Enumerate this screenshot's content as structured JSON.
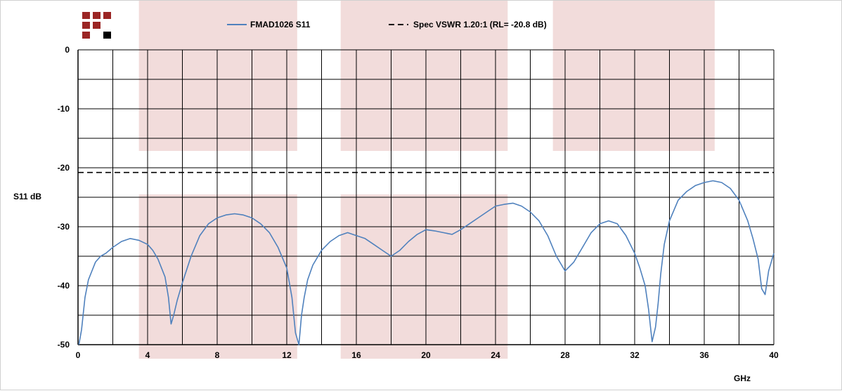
{
  "chart_data": {
    "type": "line",
    "xlabel": "GHz",
    "ylabel": "S11 dB",
    "xlim": [
      0,
      40
    ],
    "ylim": [
      -50,
      0
    ],
    "x_ticks": [
      "0",
      "4",
      "8",
      "12",
      "16",
      "20",
      "24",
      "28",
      "32",
      "36",
      "40"
    ],
    "y_ticks": [
      "0",
      "-10",
      "-20",
      "-30",
      "-40",
      "-50"
    ],
    "grid": true,
    "legend_position": "top",
    "shaded_bands_ghz": [
      [
        3.5,
        12.6
      ],
      [
        15.1,
        24.7
      ],
      [
        27.3,
        36.6
      ]
    ],
    "colors": {
      "series": "#4f81bd",
      "spec": "#000000",
      "band": "#f2dcdb",
      "logo": "#9b2524",
      "logo_accent": "#000000"
    },
    "series": [
      {
        "name": "FMAD1026 S11",
        "x": [
          0.05,
          0.2,
          0.4,
          0.6,
          0.8,
          1.0,
          1.3,
          1.6,
          2.0,
          2.5,
          3.0,
          3.5,
          4.0,
          4.3,
          4.6,
          5.0,
          5.2,
          5.35,
          5.5,
          5.7,
          6.0,
          6.5,
          7.0,
          7.5,
          8.0,
          8.5,
          9.0,
          9.5,
          10.0,
          10.5,
          11.0,
          11.5,
          12.0,
          12.3,
          12.5,
          12.7,
          12.85,
          13.0,
          13.2,
          13.5,
          14.0,
          14.5,
          15.0,
          15.5,
          16.0,
          16.5,
          17.0,
          17.5,
          18.0,
          18.5,
          19.0,
          19.5,
          20.0,
          20.5,
          21.0,
          21.5,
          22.0,
          22.5,
          23.0,
          23.5,
          24.0,
          24.5,
          25.0,
          25.5,
          26.0,
          26.5,
          27.0,
          27.5,
          28.0,
          28.5,
          29.0,
          29.5,
          30.0,
          30.5,
          31.0,
          31.5,
          32.0,
          32.3,
          32.6,
          32.8,
          33.0,
          33.2,
          33.35,
          33.5,
          33.7,
          34.0,
          34.5,
          35.0,
          35.5,
          36.0,
          36.5,
          37.0,
          37.5,
          38.0,
          38.5,
          38.8,
          39.1,
          39.3,
          39.5,
          39.7,
          40.0
        ],
        "y": [
          -50.0,
          -47.5,
          -42.0,
          -39.0,
          -37.5,
          -36.0,
          -35.0,
          -34.5,
          -33.5,
          -32.5,
          -32.0,
          -32.3,
          -33.0,
          -34.0,
          -35.5,
          -38.5,
          -42.0,
          -46.5,
          -45.0,
          -42.5,
          -39.5,
          -35.0,
          -31.5,
          -29.5,
          -28.5,
          -28.0,
          -27.8,
          -28.0,
          -28.5,
          -29.5,
          -31.0,
          -33.5,
          -37.0,
          -42.0,
          -48.0,
          -50.0,
          -45.0,
          -42.0,
          -39.0,
          -36.5,
          -34.0,
          -32.5,
          -31.5,
          -31.0,
          -31.5,
          -32.0,
          -33.0,
          -34.0,
          -35.0,
          -34.0,
          -32.5,
          -31.3,
          -30.5,
          -30.7,
          -31.0,
          -31.3,
          -30.5,
          -29.5,
          -28.5,
          -27.5,
          -26.5,
          -26.2,
          -26.0,
          -26.5,
          -27.5,
          -29.0,
          -31.5,
          -35.0,
          -37.5,
          -36.0,
          -33.5,
          -31.0,
          -29.5,
          -29.0,
          -29.5,
          -31.5,
          -34.5,
          -37.0,
          -40.0,
          -44.0,
          -49.5,
          -47.0,
          -43.0,
          -38.0,
          -33.0,
          -29.0,
          -25.5,
          -24.0,
          -23.0,
          -22.5,
          -22.2,
          -22.5,
          -23.5,
          -25.5,
          -29.0,
          -32.0,
          -35.5,
          -40.5,
          -41.5,
          -37.5,
          -34.5
        ]
      },
      {
        "name": "Spec VSWR 1.20:1 (RL= -20.8 dB)",
        "x": [
          0,
          40
        ],
        "y": [
          -20.8,
          -20.8
        ]
      }
    ]
  }
}
